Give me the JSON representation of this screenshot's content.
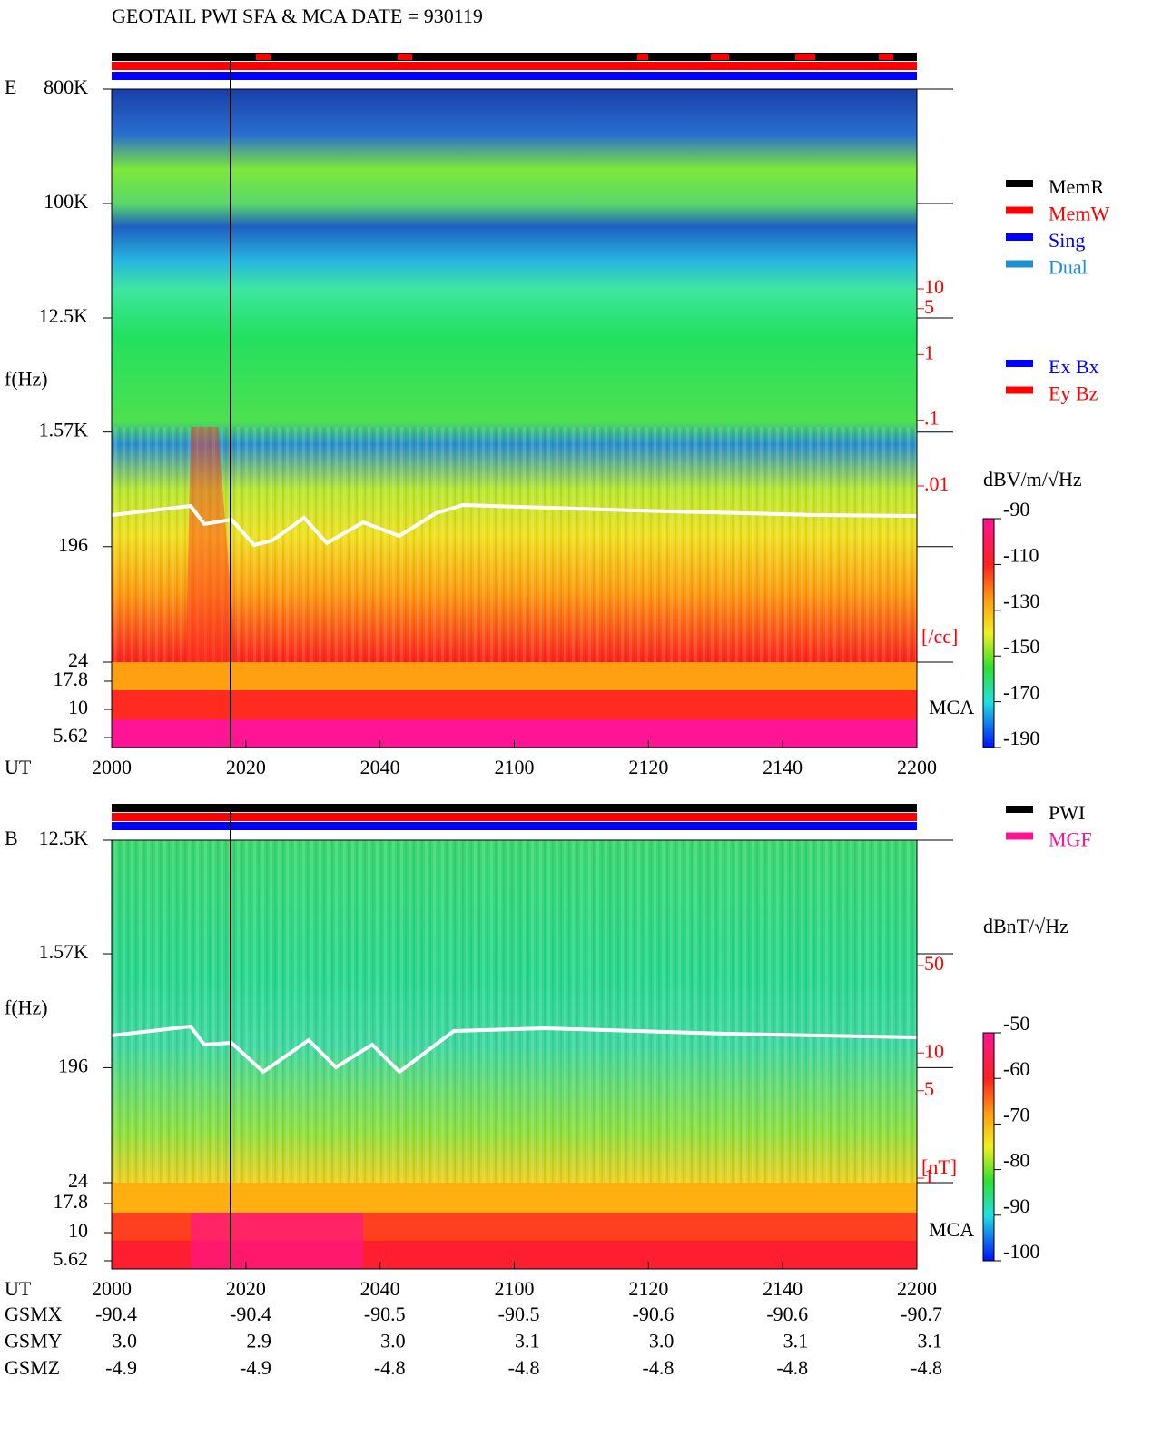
{
  "title": "GEOTAIL  PWI SFA & MCA   DATE = 930119",
  "chart_data": [
    {
      "type": "spectrogram",
      "panel_label": "E",
      "ylabel": "f(Hz)",
      "xlabel": "UT",
      "log_y": true,
      "ylim": [
        24,
        800000
      ],
      "yticks": [
        {
          "value": 800000,
          "label": "800K"
        },
        {
          "value": 100000,
          "label": "100K"
        },
        {
          "value": 12500,
          "label": "12.5K"
        },
        {
          "value": 1570,
          "label": "1.57K"
        },
        196,
        24
      ],
      "mca_label": "MCA",
      "mca_ticks": [
        17.8,
        10,
        5.62
      ],
      "xticks": [
        "2000",
        "2020",
        "2040",
        "2100",
        "2120",
        "2140",
        "2200"
      ],
      "y2lim": [
        0.01,
        10
      ],
      "y2_log": true,
      "y2_color": "#ff0000",
      "y2ticks": [
        10,
        5,
        1,
        {
          "value": 0.1,
          "label": ".1"
        },
        {
          "value": 0.01,
          "label": ".01"
        }
      ],
      "y2label": "[/cc]",
      "colorbar": {
        "label": "dBV/m/√Hz",
        "lim": [
          -190,
          -90
        ],
        "ticks": [
          -90,
          -110,
          -130,
          -150,
          -170,
          -190
        ]
      },
      "legend": [
        {
          "name": "MemR",
          "color": "#000000"
        },
        {
          "name": "MemW",
          "color": "#ff0000"
        },
        {
          "name": "Sing",
          "color": "#0000ff"
        },
        {
          "name": "Dual",
          "color": "#1e8fd0"
        }
      ],
      "legend2": [
        {
          "name": "Ex Bx",
          "color": "#0000ff"
        },
        {
          "name": "Ey Bz",
          "color": "#ff0000"
        }
      ]
    },
    {
      "type": "spectrogram",
      "panel_label": "B",
      "ylabel": "f(Hz)",
      "xlabel": "UT",
      "log_y": true,
      "ylim": [
        24,
        12500
      ],
      "yticks": [
        {
          "value": 12500,
          "label": "12.5K"
        },
        {
          "value": 1570,
          "label": "1.57K"
        },
        196,
        24
      ],
      "mca_label": "MCA",
      "mca_ticks": [
        17.8,
        10,
        5.62
      ],
      "xticks": [
        "2000",
        "2020",
        "2040",
        "2100",
        "2120",
        "2140",
        "2200"
      ],
      "y2lim": [
        1,
        50
      ],
      "y2_log": true,
      "y2_color": "#ff0000",
      "y2ticks": [
        50,
        10,
        5,
        1
      ],
      "y2label": "[nT]",
      "colorbar": {
        "label": "dBnT/√Hz",
        "lim": [
          -100,
          -50
        ],
        "ticks": [
          -50,
          -60,
          -70,
          -80,
          -90,
          -100
        ]
      },
      "legend": [
        {
          "name": "PWI",
          "color": "#000000"
        },
        {
          "name": "MGF",
          "color": "#ff1493"
        }
      ]
    }
  ],
  "orbit_table": {
    "rows": [
      [
        "GSMX",
        "-90.4",
        "-90.4",
        "-90.5",
        "-90.5",
        "-90.6",
        "-90.6",
        "-90.7"
      ],
      [
        "GSMY",
        "3.0",
        "2.9",
        "3.0",
        "3.1",
        "3.0",
        "3.1",
        "3.1"
      ],
      [
        "GSMZ",
        "-4.9",
        "-4.9",
        "-4.8",
        "-4.8",
        "-4.8",
        "-4.8",
        "-4.8"
      ]
    ]
  }
}
